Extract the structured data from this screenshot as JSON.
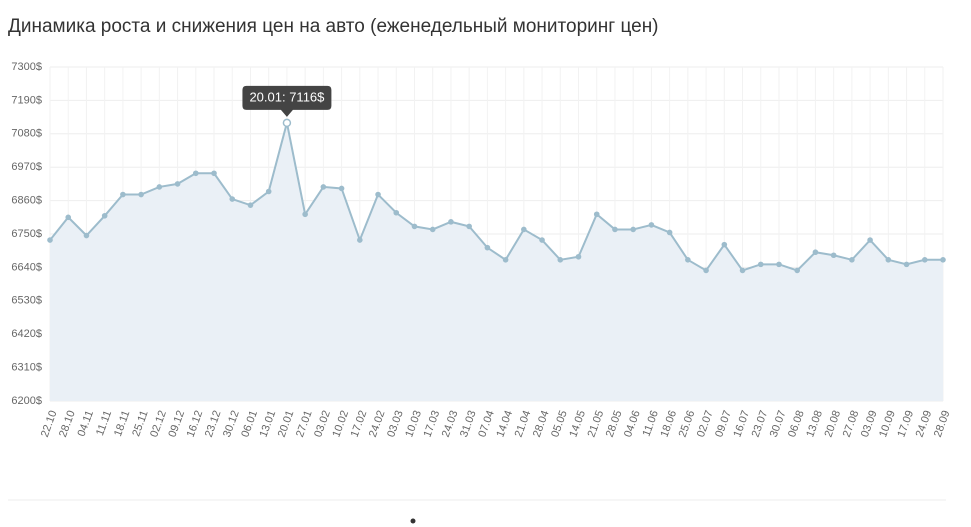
{
  "chart_data": {
    "type": "line",
    "title": "Динамика роста и снижения цен на авто (еженедельный мониторинг цен)",
    "tooltip": "20.01: 7116$",
    "categories": [
      "22.10",
      "28.10",
      "04.11",
      "11.11",
      "18.11",
      "25.11",
      "02.12",
      "09.12",
      "16.12",
      "23.12",
      "30.12",
      "06.01",
      "13.01",
      "20.01",
      "27.01",
      "03.02",
      "10.02",
      "17.02",
      "24.02",
      "03.03",
      "10.03",
      "17.03",
      "24.03",
      "31.03",
      "07.04",
      "14.04",
      "21.04",
      "28.04",
      "05.05",
      "14.05",
      "21.05",
      "28.05",
      "04.06",
      "11.06",
      "18.06",
      "25.06",
      "02.07",
      "09.07",
      "16.07",
      "23.07",
      "30.07",
      "06.08",
      "13.08",
      "20.08",
      "27.08",
      "03.09",
      "10.09",
      "17.09",
      "24.09",
      "28.09"
    ],
    "values": [
      6730,
      6805,
      6745,
      6810,
      6880,
      6880,
      6905,
      6915,
      6950,
      6950,
      6865,
      6845,
      6890,
      7116,
      6815,
      6905,
      6900,
      6730,
      6880,
      6820,
      6775,
      6765,
      6790,
      6775,
      6705,
      6665,
      6765,
      6730,
      6665,
      6675,
      6815,
      6765,
      6765,
      6780,
      6755,
      6665,
      6630,
      6715,
      6630,
      6650,
      6650,
      6630,
      6690,
      6680,
      6665,
      6730,
      6665,
      6650,
      6665,
      6665
    ],
    "color": "#9dbccc",
    "fill": "#eaf0f6",
    "ylim": [
      6200,
      7300
    ],
    "yticks": [
      {
        "value": 6200,
        "label": "6200$"
      },
      {
        "value": 6310,
        "label": "6310$"
      },
      {
        "value": 6420,
        "label": "6420$"
      },
      {
        "value": 6530,
        "label": "6530$"
      },
      {
        "value": 6640,
        "label": "6640$"
      },
      {
        "value": 6750,
        "label": "6750$"
      },
      {
        "value": 6860,
        "label": "6860$"
      },
      {
        "value": 6970,
        "label": "6970$"
      },
      {
        "value": 7080,
        "label": "7080$"
      },
      {
        "value": 7190,
        "label": "7190$"
      },
      {
        "value": 7300,
        "label": "7300$"
      }
    ],
    "grid": true
  }
}
